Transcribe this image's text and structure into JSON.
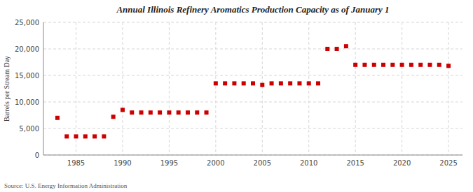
{
  "chart_data": {
    "type": "scatter",
    "title": "Annual Illinois Refinery Aromatics Production Capacity as of January 1",
    "ylabel": "Barrels per Stream Day",
    "annotations": [
      "Source: U.S. Energy Information Administration"
    ],
    "color": "#cc0000",
    "marker": "square",
    "grid": true,
    "xlim": [
      1981.5,
      2026.5
    ],
    "ylim": [
      0,
      25000
    ],
    "xticks": [
      1985,
      1990,
      1995,
      2000,
      2005,
      2010,
      2015,
      2020,
      2025
    ],
    "yticks": [
      0,
      {
        "value": 5000,
        "label": "5,000"
      },
      {
        "value": 10000,
        "label": "10,000"
      },
      {
        "value": 15000,
        "label": "15,000"
      },
      {
        "value": 20000,
        "label": "20,000"
      },
      {
        "value": 25000,
        "label": "25,000"
      }
    ],
    "x": [
      1983,
      1984,
      1985,
      1986,
      1987,
      1988,
      1989,
      1990,
      1991,
      1992,
      1993,
      1994,
      1995,
      1996,
      1997,
      1998,
      1999,
      2000,
      2001,
      2002,
      2003,
      2004,
      2005,
      2006,
      2007,
      2008,
      2009,
      2010,
      2011,
      2012,
      2013,
      2014,
      2015,
      2016,
      2017,
      2018,
      2019,
      2020,
      2021,
      2022,
      2023,
      2024,
      2025
    ],
    "values": [
      7000,
      3500,
      3500,
      3500,
      3500,
      3500,
      7200,
      8500,
      8000,
      8000,
      8000,
      8000,
      8000,
      8000,
      8000,
      8000,
      8000,
      13500,
      13500,
      13500,
      13500,
      13500,
      13200,
      13500,
      13500,
      13500,
      13500,
      13500,
      13500,
      20000,
      20000,
      20500,
      17000,
      17000,
      17000,
      17000,
      17000,
      17000,
      17000,
      17000,
      17000,
      17000,
      16800
    ]
  }
}
